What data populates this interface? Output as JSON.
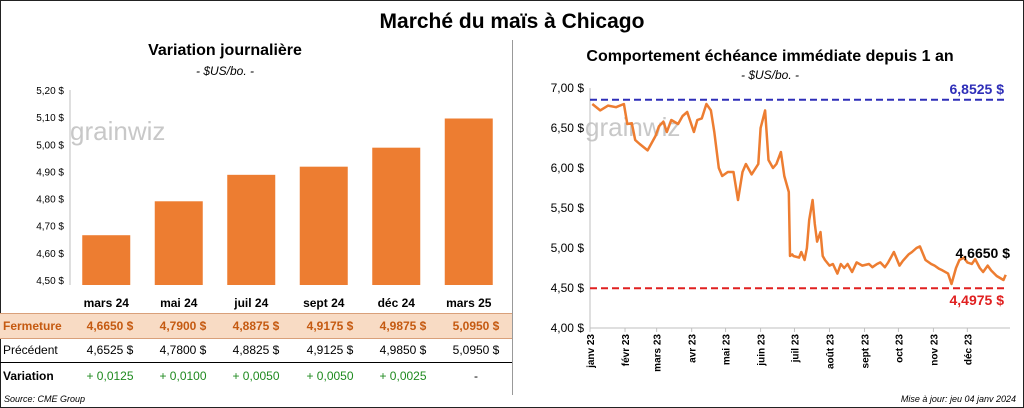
{
  "title": "Marché du maïs à Chicago",
  "watermark": "grainwiz",
  "left_chart": {
    "title": "Variation journalière",
    "subtitle": "- $US/bo. -"
  },
  "right_chart": {
    "title": "Comportement échéance immédiate depuis 1 an",
    "subtitle": "- $US/bo. -",
    "max_label": "6,8525 $",
    "min_label": "4,4975 $",
    "last_label": "4,6650 $"
  },
  "table": {
    "rows": [
      {
        "label": "Fermeture",
        "cells": [
          "4,6650  $",
          "4,7900  $",
          "4,8875  $",
          "4,9175  $",
          "4,9875  $",
          "5,0950  $"
        ]
      },
      {
        "label": "Précédent",
        "cells": [
          "4,6525  $",
          "4,7800  $",
          "4,8825  $",
          "4,9125  $",
          "4,9850  $",
          "5,0950  $"
        ]
      },
      {
        "label": "Variation",
        "cells": [
          "+ 0,0125",
          "+ 0,0100",
          "+ 0,0050",
          "+ 0,0050",
          "+ 0,0025",
          "-"
        ]
      }
    ]
  },
  "footer": {
    "source": "Source: CME Group",
    "update": "Mise à jour: jeu 04 janv 2024"
  },
  "colors": {
    "bar": "#ed7d31",
    "line": "#ed7d31",
    "max": "#2e2eb8",
    "min": "#e02020",
    "gain": "#1e8a1e"
  },
  "chart_data": [
    {
      "type": "bar",
      "title": "Variation journalière",
      "subtitle": "- $US/bo. -",
      "categories": [
        "mars 24",
        "mai 24",
        "juil 24",
        "sept 24",
        "déc 24",
        "mars 25"
      ],
      "values": [
        4.665,
        4.79,
        4.8875,
        4.9175,
        4.9875,
        5.095
      ],
      "ylim": [
        4.5,
        5.2
      ],
      "yticks": [
        "4,50 $",
        "4,60 $",
        "4,70 $",
        "4,80 $",
        "4,90 $",
        "5,00 $",
        "5,10 $",
        "5,20 $"
      ],
      "grid": false
    },
    {
      "type": "line",
      "title": "Comportement échéance immédiate depuis 1 an",
      "subtitle": "- $US/bo. -",
      "ylim": [
        4.0,
        7.0
      ],
      "yticks": [
        "4,00 $",
        "4,50 $",
        "5,00 $",
        "5,50 $",
        "6,00 $",
        "6,50 $",
        "7,00 $"
      ],
      "xticks": [
        "janv 23",
        "févr 23",
        "mars 23",
        "avr 23",
        "mai 23",
        "juin 23",
        "juil 23",
        "août 23",
        "sept 23",
        "oct 23",
        "nov 23",
        "déc 23"
      ],
      "max_line": 6.8525,
      "min_line": 4.4975,
      "series": [
        {
          "x": [
            "2023-01-03",
            "2023-01-10",
            "2023-01-17",
            "2023-01-24",
            "2023-01-31",
            "2023-02-03",
            "2023-02-07",
            "2023-02-10",
            "2023-02-14",
            "2023-02-21",
            "2023-02-28",
            "2023-03-03",
            "2023-03-07",
            "2023-03-10",
            "2023-03-14",
            "2023-03-20",
            "2023-03-24",
            "2023-03-28",
            "2023-04-03",
            "2023-04-06",
            "2023-04-10",
            "2023-04-14",
            "2023-04-18",
            "2023-04-21",
            "2023-04-25",
            "2023-04-28",
            "2023-05-03",
            "2023-05-08",
            "2023-05-12",
            "2023-05-16",
            "2023-05-19",
            "2023-05-24",
            "2023-05-30",
            "2023-06-01",
            "2023-06-05",
            "2023-06-08",
            "2023-06-12",
            "2023-06-15",
            "2023-06-19",
            "2023-06-22",
            "2023-06-26",
            "2023-06-27",
            "2023-06-29",
            "2023-06-30",
            "2023-07-05",
            "2023-07-07",
            "2023-07-10",
            "2023-07-12",
            "2023-07-14",
            "2023-07-17",
            "2023-07-19",
            "2023-07-21",
            "2023-07-24",
            "2023-07-26",
            "2023-07-28",
            "2023-08-01",
            "2023-08-04",
            "2023-08-08",
            "2023-08-11",
            "2023-08-14",
            "2023-08-17",
            "2023-08-21",
            "2023-08-25",
            "2023-08-30",
            "2023-09-05",
            "2023-09-08",
            "2023-09-12",
            "2023-09-15",
            "2023-09-19",
            "2023-09-22",
            "2023-09-27",
            "2023-10-02",
            "2023-10-05",
            "2023-10-10",
            "2023-10-13",
            "2023-10-17",
            "2023-10-20",
            "2023-10-25",
            "2023-10-30",
            "2023-11-02",
            "2023-11-06",
            "2023-11-09",
            "2023-11-14",
            "2023-11-17",
            "2023-11-21",
            "2023-11-24",
            "2023-11-28",
            "2023-12-01",
            "2023-12-05",
            "2023-12-08",
            "2023-12-12",
            "2023-12-15",
            "2023-12-19",
            "2023-12-22",
            "2023-12-27",
            "2024-01-02",
            "2024-01-04"
          ],
          "values": [
            6.8,
            6.72,
            6.78,
            6.76,
            6.8,
            6.55,
            6.56,
            6.35,
            6.3,
            6.22,
            6.4,
            6.52,
            6.58,
            6.45,
            6.6,
            6.55,
            6.65,
            6.7,
            6.45,
            6.6,
            6.62,
            6.8,
            6.72,
            6.45,
            6.0,
            5.9,
            5.95,
            5.95,
            5.6,
            5.95,
            6.05,
            5.92,
            6.05,
            6.5,
            6.72,
            6.1,
            6.0,
            6.05,
            6.2,
            5.9,
            5.7,
            4.9,
            4.92,
            4.9,
            4.88,
            4.95,
            4.85,
            5.0,
            5.35,
            5.6,
            5.3,
            5.08,
            5.2,
            4.9,
            4.85,
            4.78,
            4.8,
            4.68,
            4.8,
            4.75,
            4.8,
            4.7,
            4.82,
            4.78,
            4.8,
            4.76,
            4.8,
            4.82,
            4.76,
            4.82,
            4.95,
            4.78,
            4.84,
            4.92,
            4.95,
            5.0,
            5.02,
            4.85,
            4.8,
            4.78,
            4.74,
            4.72,
            4.68,
            4.55,
            4.75,
            4.85,
            4.88,
            4.82,
            4.8,
            4.86,
            4.75,
            4.7,
            4.78,
            4.72,
            4.65,
            4.6,
            4.665
          ]
        }
      ]
    }
  ]
}
